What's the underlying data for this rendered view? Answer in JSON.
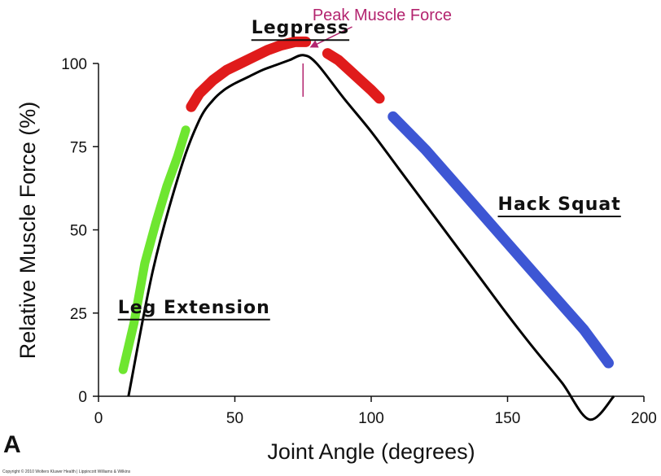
{
  "chart_data": {
    "type": "line",
    "panel_label": "A",
    "xlabel": "Joint Angle (degrees)",
    "ylabel": "Relative Muscle Force (%)",
    "xlim": [
      0,
      200
    ],
    "ylim": [
      0,
      100
    ],
    "x_ticks": [
      0,
      50,
      100,
      150,
      200
    ],
    "y_ticks": [
      0,
      25,
      50,
      75,
      100
    ],
    "grid": false,
    "force_curve": {
      "name": "Relative muscle force",
      "color": "#000000",
      "x": [
        11,
        20,
        30,
        37,
        42,
        46,
        50,
        55,
        60,
        65,
        70,
        75,
        80,
        90,
        100,
        110,
        120,
        130,
        140,
        150,
        160,
        170,
        180,
        189
      ],
      "y": [
        0,
        38,
        68,
        83,
        89,
        92,
        94,
        96,
        98,
        99.5,
        101,
        102.5,
        100,
        89.5,
        79.5,
        68.5,
        57.5,
        46.5,
        35.5,
        24.5,
        14,
        4,
        -7,
        0
      ]
    },
    "series": [
      {
        "name": "Leg Extension",
        "color": "#6ee630",
        "x": [
          9,
          13,
          17,
          21,
          25,
          29,
          32
        ],
        "y": [
          8,
          22,
          40,
          52,
          63,
          72,
          80
        ]
      },
      {
        "name": "Legpress",
        "color": "#e01b1b",
        "x": [
          34,
          37,
          42,
          47,
          52,
          57,
          62,
          67,
          72,
          76
        ],
        "y": [
          87,
          91,
          95,
          98,
          100,
          102,
          104,
          105.5,
          106.5,
          106.5
        ]
      },
      {
        "name": "Legpress (descending)",
        "color": "#e01b1b",
        "x": [
          84,
          88,
          92,
          96,
          100,
          103
        ],
        "y": [
          103,
          101,
          98,
          95,
          92,
          89.5
        ]
      },
      {
        "name": "Hack Squat",
        "color": "#3d56d4",
        "x": [
          108,
          120,
          135,
          150,
          165,
          178,
          187
        ],
        "y": [
          84,
          74,
          60,
          46,
          32,
          20,
          10
        ]
      }
    ],
    "annotations": [
      {
        "text": "Legpress",
        "x": 74,
        "y": 109
      },
      {
        "text": "Leg Extension",
        "x": 35,
        "y": 25
      },
      {
        "text": "Hack Squat",
        "x": 169,
        "y": 56
      },
      {
        "text": "Peak Muscle Force",
        "x": 104,
        "y": 113
      }
    ],
    "peak_marker": {
      "x": 75,
      "y_from": 90,
      "y_to": 100,
      "arrow_tail": [
        93,
        111
      ],
      "arrow_head": [
        78,
        105
      ]
    }
  },
  "footer": {
    "copyright": "Copyright © 2010 Wolters Kluwer Health | Lippincott Williams & Wilkins"
  }
}
